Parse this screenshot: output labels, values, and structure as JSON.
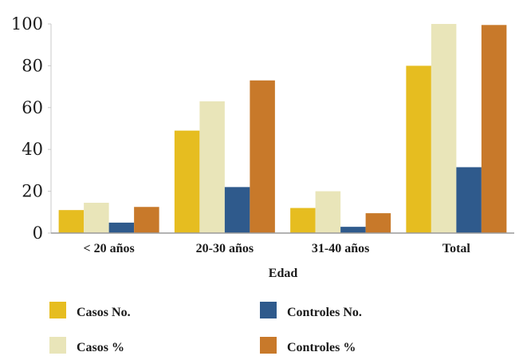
{
  "chart_data": {
    "type": "bar",
    "categories": [
      "< 20 años",
      "20-30 años",
      "31-40 años",
      "Total"
    ],
    "series": [
      {
        "name": "Casos No.",
        "values": [
          11,
          49,
          12,
          80
        ],
        "color": "#e6bd20"
      },
      {
        "name": "Casos %",
        "values": [
          14.5,
          63,
          20,
          100
        ],
        "color": "#e9e5b9"
      },
      {
        "name": "Controles No.",
        "values": [
          5,
          22,
          3,
          31.5
        ],
        "color": "#2f5a8c"
      },
      {
        "name": "Controles %",
        "values": [
          12.5,
          73,
          9.5,
          99.5
        ],
        "color": "#c8792a"
      }
    ],
    "title": "",
    "xlabel": "Edad",
    "ylabel": "",
    "ylim": [
      0,
      100
    ],
    "yticks": [
      0,
      20,
      40,
      60,
      80,
      100
    ],
    "grid": false,
    "legend": "bottom"
  }
}
